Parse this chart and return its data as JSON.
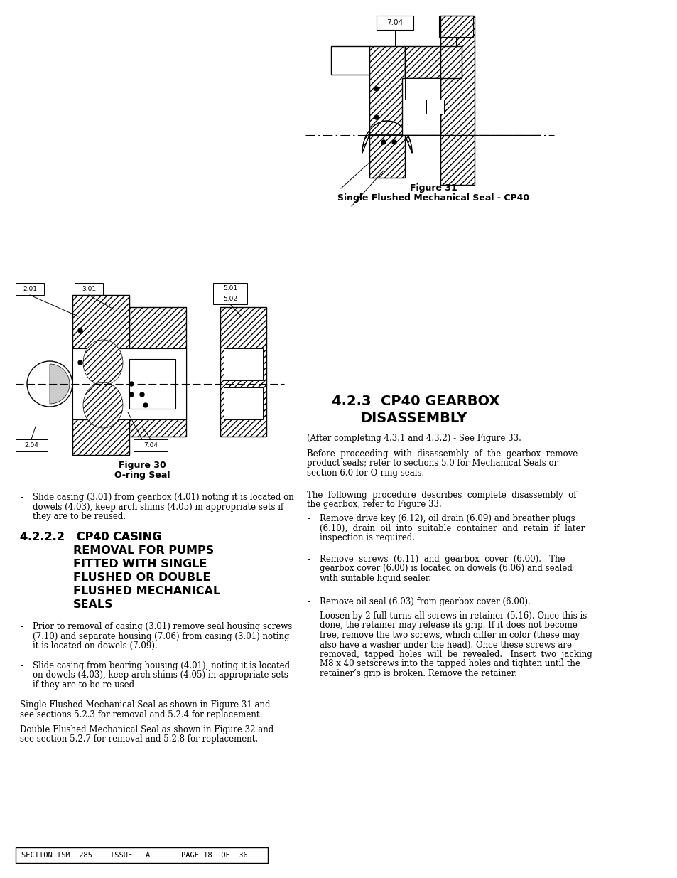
{
  "page_bg": "#ffffff",
  "footer_text": "SECTION TSM  285    ISSUE   A       PAGE 18  OF  36",
  "fig31_caption_line1": "Figure 31",
  "fig31_caption_line2": "Single Flushed Mechanical Seal - CP40",
  "fig30_caption_line1": "Figure 30",
  "fig30_caption_line2": "O-ring Seal",
  "section_title_line1": "4.2.3  CP40 GEARBOX",
  "section_title_line2": "DISASSEMBLY",
  "section_222_line1": "4.2.2.2   CP40 CASING",
  "section_222_line2": "REMOVAL FOR PUMPS",
  "section_222_line3": "FITTED WITH SINGLE",
  "section_222_line4": "FLUSHED OR DOUBLE",
  "section_222_line5": "FLUSHED MECHANICAL",
  "section_222_line6": "SEALS",
  "bullet_intro": "(After completing 4.3.1 and 4.3.2) - See Figure 33.",
  "para1_line1": "Before  proceeding  with  disassembly  of  the  gearbox  remove",
  "para1_line2": "product seals; refer to sections 5.0 for Mechanical Seals or",
  "para1_line3": "section 6.0 for O-ring seals.",
  "para2_line1": "The  following  procedure  describes  complete  disassembly  of",
  "para2_line2": "the gearbox, refer to Figure 33.",
  "b1_line1": "Remove drive key (6.12), oil drain (6.09) and breather plugs",
  "b1_line2": "(6.10),  drain  oil  into  suitable  container  and  retain  if  later",
  "b1_line3": "inspection is required.",
  "b2_line1": "Remove  screws  (6.11)  and  gearbox  cover  (6.00).   The",
  "b2_line2": "gearbox cover (6.00) is located on dowels (6.06) and sealed",
  "b2_line3": "with suitable liquid sealer.",
  "b3_line1": "Remove oil seal (6.03) from gearbox cover (6.00).",
  "b4_line1": "Loosen by 2 full turns all screws in retainer (5.16). Once this is",
  "b4_line2": "done, the retainer may release its grip. If it does not become",
  "b4_line3": "free, remove the two screws, which differ in color (these may",
  "b4_line4": "also have a washer under the head). Once these screws are",
  "b4_line5": "removed,  tapped  holes  will  be  revealed.   Insert  two  jacking",
  "b4_line6": "M8 x 40 setscrews into the tapped holes and tighten until the",
  "b4_line7": "retainer’s grip is broken. Remove the retainer.",
  "lc_b1_l1": "Slide casing (3.01) from gearbox (4.01) noting it is located on",
  "lc_b1_l2": "dowels (4.03), keep arch shims (4.05) in appropriate sets if",
  "lc_b1_l3": "they are to be reused.",
  "lc_b2_l1": "Prior to removal of casing (3.01) remove seal housing screws",
  "lc_b2_l2": "(7.10) and separate housing (7.06) from casing (3.01) noting",
  "lc_b2_l3": "it is located on dowels (7.09).",
  "lc_b3_l1": "Slide casing from bearing housing (4.01), noting it is located",
  "lc_b3_l2": "on dowels (4.03), keep arch shims (4.05) in appropriate sets",
  "lc_b3_l3": "if they are to be re-used",
  "lc_p1_l1": "Single Flushed Mechanical Seal as shown in Figure 31 and",
  "lc_p1_l2": "see sections 5.2.3 for removal and 5.2.4 for replacement.",
  "lc_p2_l1": "Double Flushed Mechanical Seal as shown in Figure 32 and",
  "lc_p2_l2": "see section 5.2.7 for removal and 5.2.8 for replacement."
}
